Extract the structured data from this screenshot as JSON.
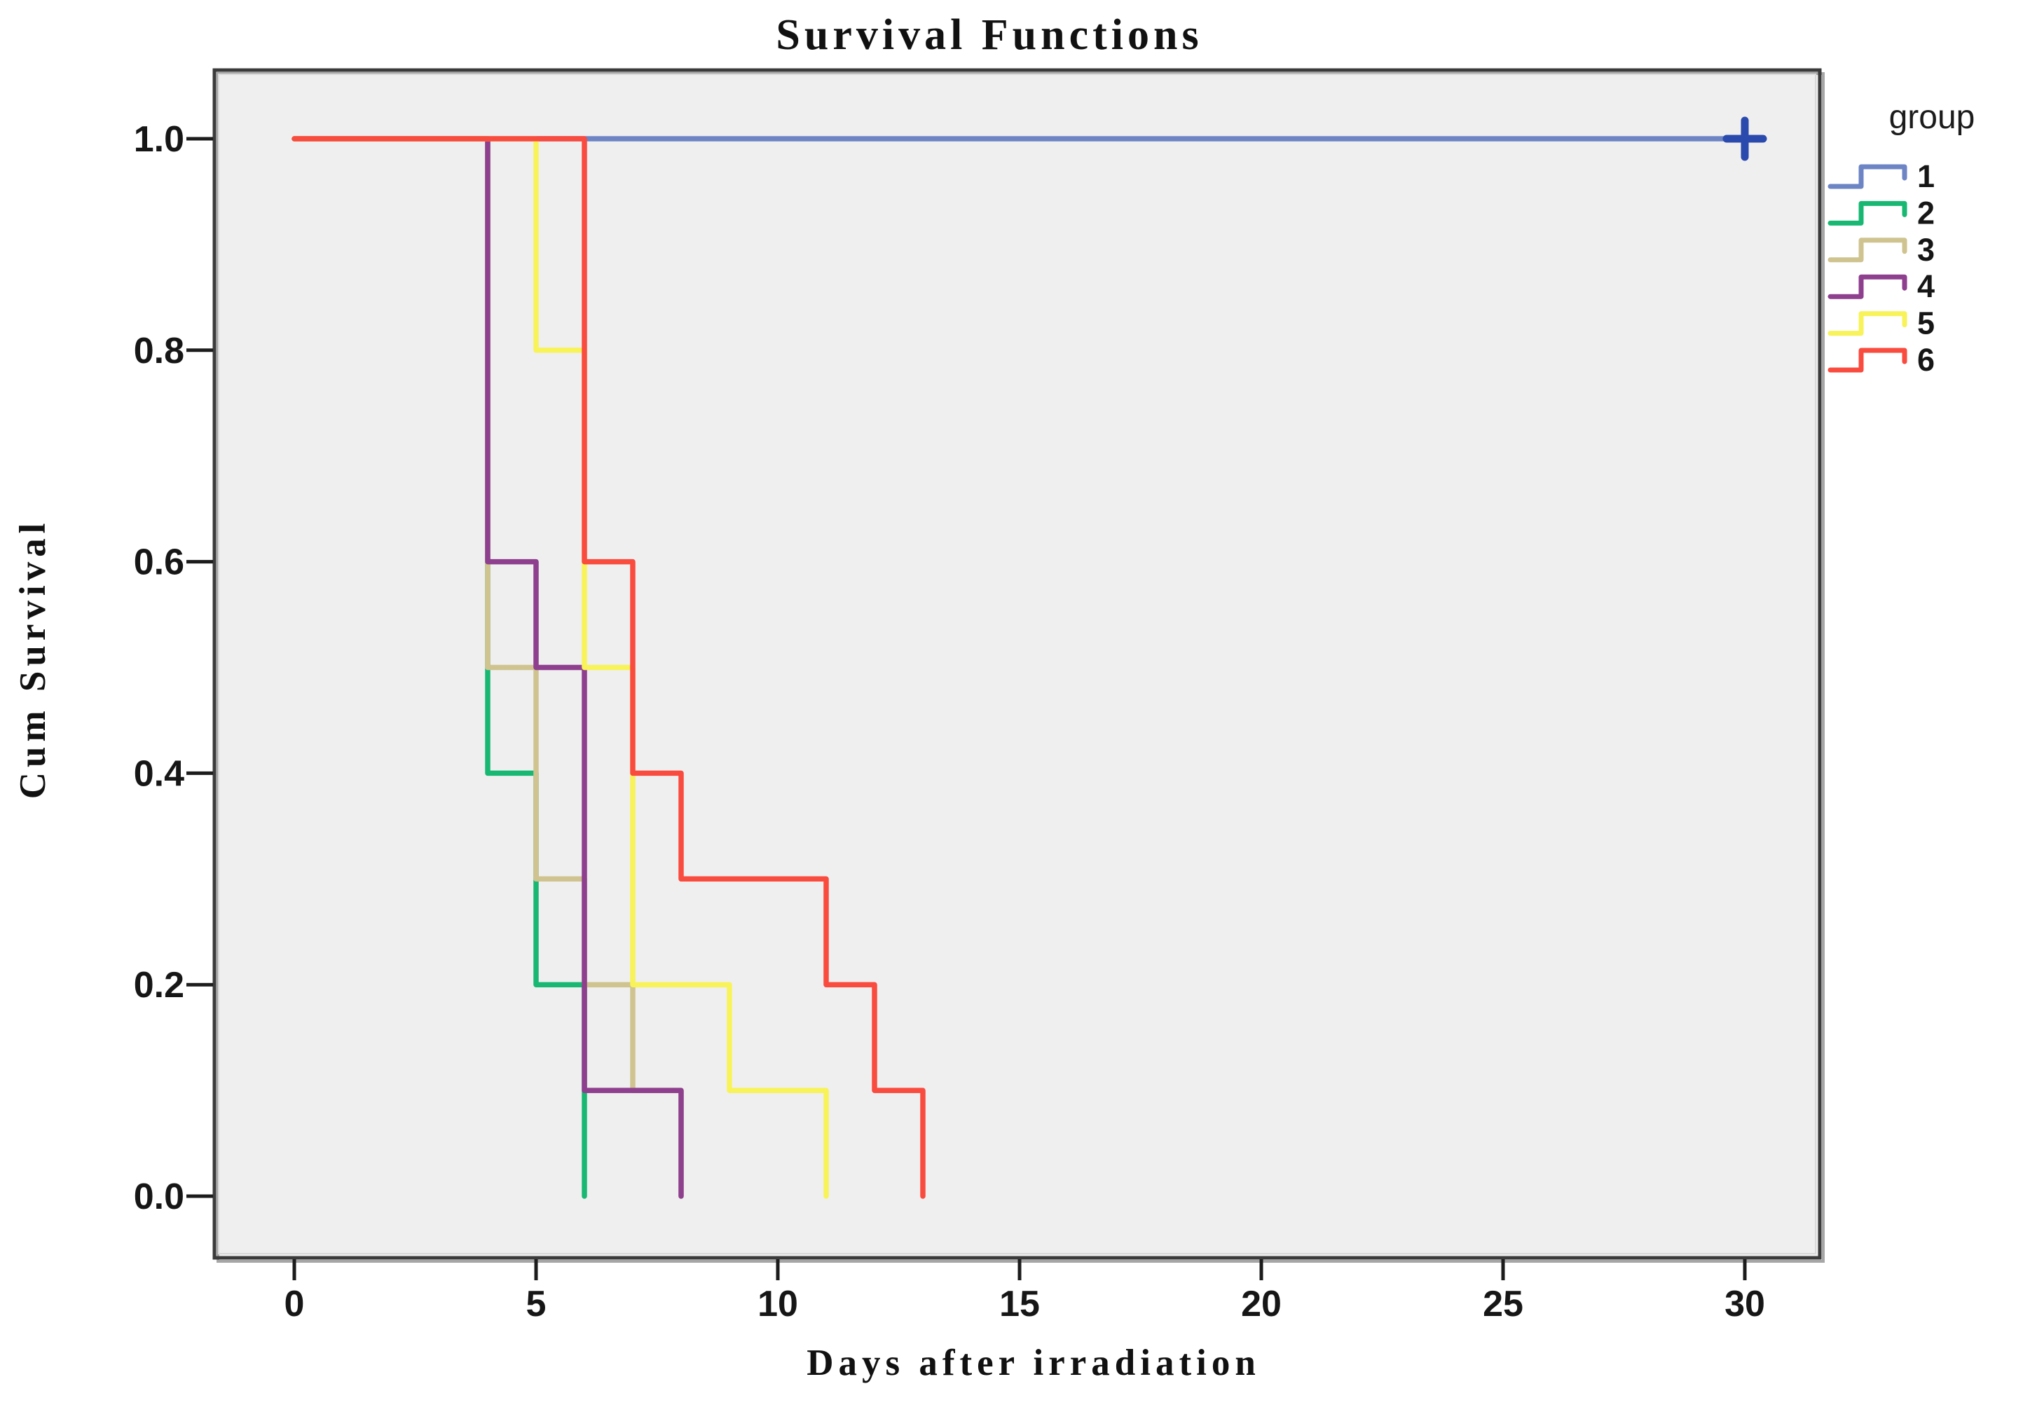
{
  "page": {
    "background_color": "#ffffff",
    "plot_background_color": "#f0eff0",
    "frame_color": "#3b3b3b",
    "frame_highlight_color": "#d9d9d9",
    "tick_color": "#1c1c1c",
    "text_color": "#111111"
  },
  "chart_data": {
    "type": "line",
    "subtype": "kaplan-meier-step",
    "title": "Survival Functions",
    "xlabel": "Days after irradiation",
    "ylabel": "Cum Survival",
    "grid": false,
    "xlim": [
      -1.65,
      31.55
    ],
    "ylim": [
      -0.06,
      1.06
    ],
    "x_ticks": [
      {
        "v": 0,
        "label": "0"
      },
      {
        "v": 5,
        "label": "5"
      },
      {
        "v": 10,
        "label": "10"
      },
      {
        "v": 15,
        "label": "15"
      },
      {
        "v": 20,
        "label": "20"
      },
      {
        "v": 25,
        "label": "25"
      },
      {
        "v": 30,
        "label": "30"
      }
    ],
    "y_ticks": [
      {
        "v": 0.0,
        "label": "0.0"
      },
      {
        "v": 0.2,
        "label": "0.2"
      },
      {
        "v": 0.4,
        "label": "0.4"
      },
      {
        "v": 0.6,
        "label": "0.6"
      },
      {
        "v": 0.8,
        "label": "0.8"
      },
      {
        "v": 1.0,
        "label": "1.0"
      }
    ],
    "legend": {
      "title": "group",
      "position": "right"
    },
    "series": [
      {
        "name": "1",
        "color": "#6d85c4",
        "points": [
          [
            0,
            1.0
          ],
          [
            30,
            1.0
          ]
        ],
        "censored": [
          [
            30,
            1.0
          ]
        ],
        "censor_color": "#2a4aad"
      },
      {
        "name": "2",
        "color": "#18b873",
        "points": [
          [
            0,
            1.0
          ],
          [
            4,
            1.0
          ],
          [
            4,
            0.4
          ],
          [
            5,
            0.4
          ],
          [
            5,
            0.2
          ],
          [
            6,
            0.2
          ],
          [
            6,
            0.0
          ]
        ]
      },
      {
        "name": "3",
        "color": "#cfc38f",
        "points": [
          [
            0,
            1.0
          ],
          [
            4,
            1.0
          ],
          [
            4,
            0.5
          ],
          [
            5,
            0.5
          ],
          [
            5,
            0.3
          ],
          [
            6,
            0.3
          ],
          [
            6,
            0.2
          ],
          [
            7,
            0.2
          ],
          [
            7,
            0.1
          ],
          [
            8,
            0.1
          ],
          [
            8,
            0.0
          ]
        ]
      },
      {
        "name": "4",
        "color": "#8e3f8e",
        "points": [
          [
            0,
            1.0
          ],
          [
            4,
            1.0
          ],
          [
            4,
            0.6
          ],
          [
            5,
            0.6
          ],
          [
            5,
            0.5
          ],
          [
            6,
            0.5
          ],
          [
            6,
            0.1
          ],
          [
            8,
            0.1
          ],
          [
            8,
            0.0
          ]
        ]
      },
      {
        "name": "5",
        "color": "#f7f359",
        "points": [
          [
            0,
            1.0
          ],
          [
            5,
            1.0
          ],
          [
            5,
            0.8
          ],
          [
            6,
            0.8
          ],
          [
            6,
            0.5
          ],
          [
            7,
            0.5
          ],
          [
            7,
            0.2
          ],
          [
            9,
            0.2
          ],
          [
            9,
            0.1
          ],
          [
            11,
            0.1
          ],
          [
            11,
            0.0
          ]
        ]
      },
      {
        "name": "6",
        "color": "#f94b3e",
        "points": [
          [
            0,
            1.0
          ],
          [
            6,
            1.0
          ],
          [
            6,
            0.6
          ],
          [
            7,
            0.6
          ],
          [
            7,
            0.4
          ],
          [
            8,
            0.4
          ],
          [
            8,
            0.3
          ],
          [
            11,
            0.3
          ],
          [
            11,
            0.2
          ],
          [
            12,
            0.2
          ],
          [
            12,
            0.1
          ],
          [
            13,
            0.1
          ],
          [
            13,
            0.0
          ]
        ]
      }
    ]
  }
}
